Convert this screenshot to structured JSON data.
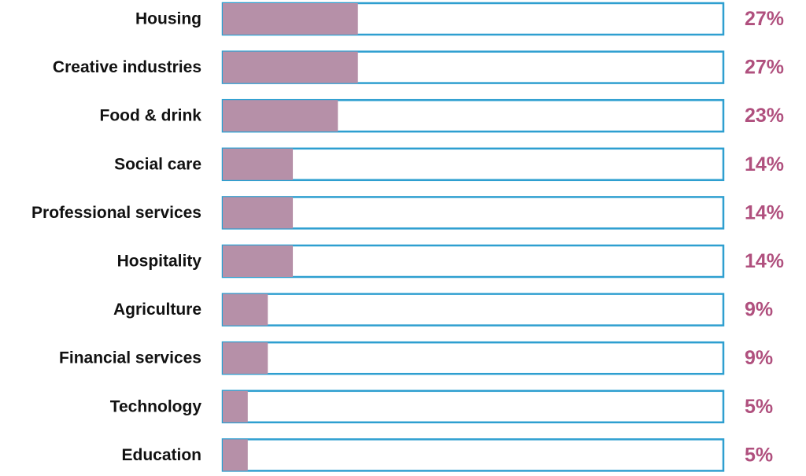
{
  "chart_data": {
    "type": "bar",
    "orientation": "horizontal",
    "categories": [
      "Housing",
      "Creative industries",
      "Food & drink",
      "Social care",
      "Professional services",
      "Hospitality",
      "Agriculture",
      "Financial services",
      "Technology",
      "Education"
    ],
    "values": [
      27,
      27,
      23,
      14,
      14,
      14,
      9,
      9,
      5,
      5
    ],
    "value_labels": [
      "27%",
      "27%",
      "23%",
      "14%",
      "14%",
      "14%",
      "9%",
      "9%",
      "5%",
      "5%"
    ],
    "xlim": [
      0,
      100
    ],
    "grid": false,
    "legend": "none"
  },
  "colors": {
    "bar_fill": "#b690a8",
    "bar_outline": "#2e9fd0",
    "value_text": "#b0507e",
    "label_text": "#111111"
  }
}
